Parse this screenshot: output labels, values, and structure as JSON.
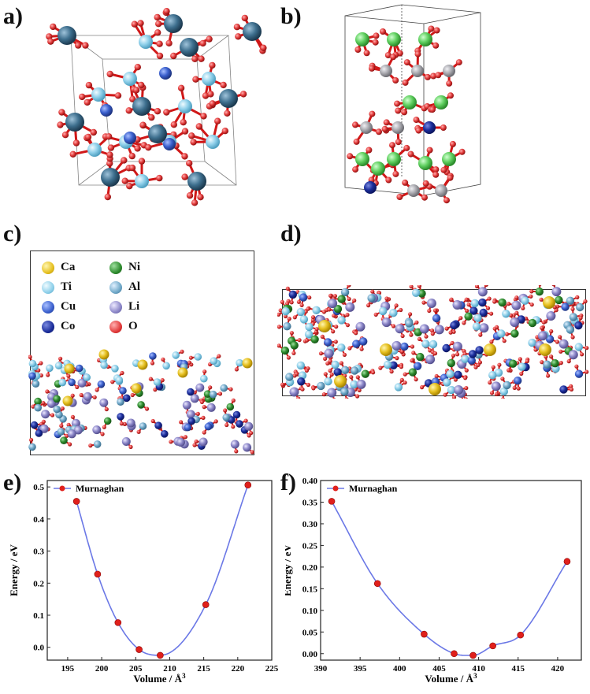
{
  "panels": {
    "a": {
      "label": "a)"
    },
    "b": {
      "label": "b)"
    },
    "c": {
      "label": "c)"
    },
    "d": {
      "label": "d)"
    },
    "e": {
      "label": "e)"
    },
    "f": {
      "label": "f)"
    }
  },
  "legend": {
    "items": [
      {
        "symbol": "Ca",
        "color": "#e6c020"
      },
      {
        "symbol": "Ni",
        "color": "#2e8b2e"
      },
      {
        "symbol": "Ti",
        "color": "#8fd0ea"
      },
      {
        "symbol": "Al",
        "color": "#6fa8c8"
      },
      {
        "symbol": "Cu",
        "color": "#3a5fcd"
      },
      {
        "symbol": "Li",
        "color": "#8b86c8"
      },
      {
        "symbol": "Co",
        "color": "#1b2d9a"
      },
      {
        "symbol": "O",
        "color": "#e23b3b"
      }
    ]
  },
  "colors": {
    "curve": "#6b78e6",
    "point": "#e0201c",
    "oxygen": "#e02020",
    "large_atom": "#3e6f8e",
    "ti": "#8fd0ea",
    "cu": "#2a44b0",
    "green": "#5fcf5f",
    "grey": "#a8a8ae"
  },
  "chart_data": [
    {
      "type": "line",
      "panel": "e)",
      "xlabel": "Volume / Å3",
      "ylabel": "Energy / eV",
      "xlim": [
        192,
        225
      ],
      "ylim": [
        -0.04,
        0.52
      ],
      "xticks": [
        "195",
        "200",
        "205",
        "210",
        "215",
        "220",
        "225"
      ],
      "yticks": [
        "0.0",
        "0.1",
        "0.2",
        "0.3",
        "0.4",
        "0.5"
      ],
      "series": [
        {
          "name": "Murnaghan",
          "points": [
            [
              196.3,
              0.455
            ],
            [
              199.4,
              0.228
            ],
            [
              202.4,
              0.077
            ],
            [
              205.5,
              -0.007
            ],
            [
              208.6,
              -0.025
            ],
            [
              215.3,
              0.133
            ],
            [
              221.5,
              0.506
            ]
          ]
        }
      ],
      "legend_position": "top-left"
    },
    {
      "type": "line",
      "panel": "f)",
      "xlabel": "Volume / Å3",
      "ylabel": "Energy / eV",
      "xlim": [
        390,
        423
      ],
      "ylim": [
        -0.015,
        0.4
      ],
      "xticks": [
        "390",
        "395",
        "400",
        "405",
        "410",
        "415",
        "420"
      ],
      "yticks": [
        "0.00",
        "0.05",
        "0.10",
        "0.15",
        "0.20",
        "0.25",
        "0.30",
        "0.35",
        "0.40"
      ],
      "series": [
        {
          "name": "Murnaghan",
          "points": [
            [
              391.4,
              0.352
            ],
            [
              397.2,
              0.162
            ],
            [
              403.1,
              0.045
            ],
            [
              406.9,
              0.0
            ],
            [
              409.3,
              -0.004
            ],
            [
              411.8,
              0.018
            ],
            [
              415.3,
              0.043
            ],
            [
              421.2,
              0.213
            ]
          ]
        }
      ],
      "legend_position": "top-left"
    }
  ]
}
